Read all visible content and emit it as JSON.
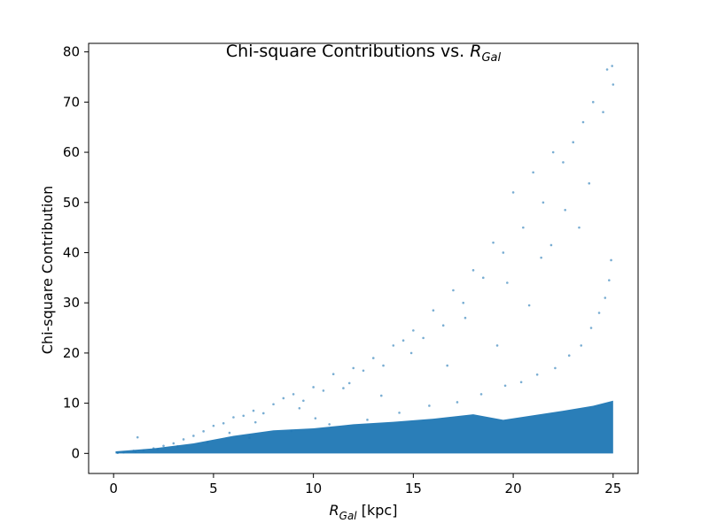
{
  "chart_data": {
    "type": "scatter",
    "title": {
      "prefix": "Chi-square Contributions vs. ",
      "symbol": "R",
      "subscript": "Gal"
    },
    "xlabel": {
      "symbol": "R",
      "subscript": "Gal",
      "suffix": " [kpc]"
    },
    "ylabel": "Chi-square Contribution",
    "xlim": [
      -1.25,
      26.25
    ],
    "ylim": [
      -4,
      81.7
    ],
    "xticks": [
      0,
      5,
      10,
      15,
      20,
      25
    ],
    "xtick_labels": [
      "0",
      "5",
      "10",
      "15",
      "20",
      "25"
    ],
    "yticks": [
      0,
      10,
      20,
      30,
      40,
      50,
      60,
      70,
      80
    ],
    "ytick_labels": [
      "0",
      "10",
      "20",
      "30",
      "40",
      "50",
      "60",
      "70",
      "80"
    ],
    "grid": false,
    "legend": "none",
    "color": "#1f77b4",
    "point_alpha": 0.6,
    "series": [
      {
        "x": [
          0.2,
          0.5,
          1.0,
          1.2,
          1.5,
          2.0,
          2.5,
          3.0,
          3.5,
          4.0,
          4.5,
          5.0,
          5.5,
          6.0,
          6.5,
          7.0,
          7.5,
          8.0,
          8.5,
          9.0,
          9.5,
          10.0,
          10.5,
          11.0,
          11.5,
          12.0,
          12.5,
          13.0,
          13.5,
          14.0,
          14.5,
          15.0,
          15.5,
          16.0,
          16.5,
          17.0,
          17.5,
          18.0,
          18.5,
          19.0,
          19.5,
          20.0,
          20.5,
          21.0,
          21.5,
          22.0,
          22.5,
          23.0,
          23.5,
          24.0,
          24.5,
          25.0,
          2.2,
          4.7,
          6.8,
          8.9,
          10.8,
          12.7,
          14.3,
          15.8,
          17.2,
          18.4,
          19.6,
          20.4,
          21.2,
          22.1,
          22.8,
          23.4,
          23.9,
          24.3,
          24.6,
          24.8,
          24.9,
          23.3,
          21.9,
          19.7,
          17.6,
          14.9,
          11.8,
          9.3,
          7.1,
          5.8,
          3.2,
          1.1,
          24.7,
          24.95,
          23.8,
          22.6,
          21.4,
          20.8,
          19.2,
          16.7,
          13.4,
          10.1
        ],
        "y": [
          0.1,
          0.2,
          0.5,
          3.2,
          0.6,
          1.0,
          1.5,
          2.0,
          2.8,
          3.5,
          4.4,
          5.5,
          6.0,
          7.2,
          7.5,
          8.5,
          8.0,
          9.8,
          11.0,
          11.8,
          10.5,
          13.2,
          12.5,
          15.8,
          13.0,
          17.0,
          16.5,
          19.0,
          17.5,
          21.5,
          22.5,
          24.5,
          23.0,
          28.5,
          25.5,
          32.5,
          30.0,
          36.5,
          35.0,
          42.0,
          40.0,
          52.0,
          45.0,
          56.0,
          50.0,
          60.0,
          58.0,
          62.0,
          66.0,
          70.0,
          68.0,
          73.5,
          0.8,
          2.2,
          3.1,
          4.5,
          5.8,
          6.7,
          8.1,
          9.5,
          10.2,
          11.8,
          13.5,
          14.2,
          15.7,
          17.0,
          19.5,
          21.5,
          25.0,
          28.0,
          31.0,
          34.5,
          38.5,
          45.0,
          41.5,
          34.0,
          27.0,
          20.0,
          14.0,
          9.0,
          6.2,
          4.1,
          1.4,
          0.3,
          76.5,
          77.2,
          53.8,
          48.5,
          39.0,
          29.5,
          21.5,
          17.5,
          11.5,
          7.0
        ]
      }
    ]
  }
}
